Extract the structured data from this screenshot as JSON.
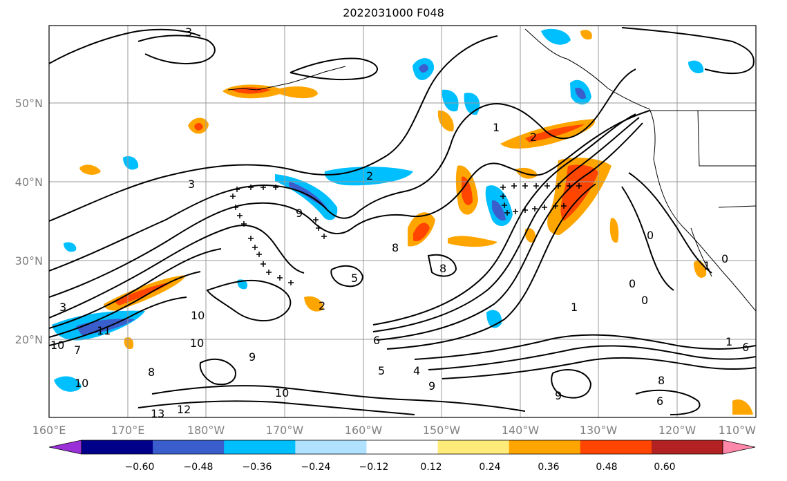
{
  "title": "2022031000 F048",
  "map": {
    "lat_labels": [
      "50°N",
      "40°N",
      "30°N",
      "20°N"
    ],
    "lon_labels": [
      "160°E",
      "170°E",
      "180°W",
      "170°W",
      "160°W",
      "150°W",
      "140°W",
      "130°W",
      "120°W",
      "110°W"
    ],
    "grid": true
  },
  "colorbar": {
    "tick_labels": [
      "−0.60",
      "−0.48",
      "−0.36",
      "−0.24",
      "−0.12",
      "0.12",
      "0.24",
      "0.36",
      "0.48",
      "0.60"
    ],
    "colors": [
      "#9b30d9",
      "#00008b",
      "#3a5fcd",
      "#00bfff",
      "#b0e2ff",
      "#ffffff",
      "#ffeb7a",
      "#ffa500",
      "#ff4500",
      "#b22222",
      "#ff88aa"
    ],
    "extend": "both"
  },
  "contour_labels": [
    "3",
    "3",
    "2",
    "2",
    "1",
    "9",
    "8",
    "8",
    "5",
    "2",
    "3",
    "10",
    "10",
    "11",
    "10",
    "9",
    "8",
    "7",
    "6",
    "5",
    "4",
    "9",
    "10",
    "12",
    "13",
    "10",
    "9",
    "6",
    "8",
    "1",
    "0",
    "0",
    "0",
    "1",
    "1",
    "6",
    "0"
  ]
}
